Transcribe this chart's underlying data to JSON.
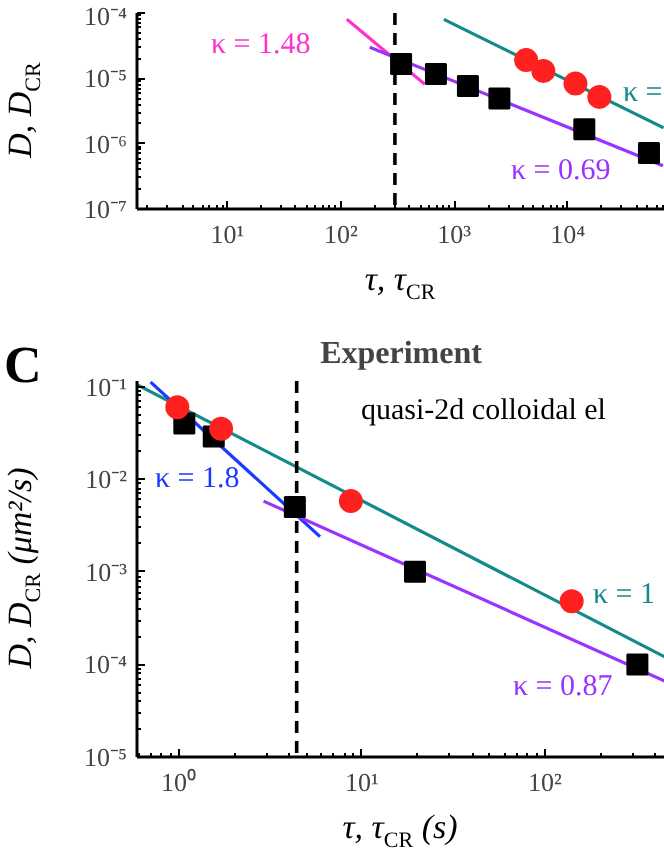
{
  "chart_data": [
    {
      "type": "scatter",
      "log": "xy",
      "xlabel": "τ, τ$_{CR}$",
      "ylabel": "D, D$_{CR}$",
      "xlim": [
        1.6,
        72000
      ],
      "ylim": [
        1e-07,
        0.0001
      ],
      "xticks": [
        {
          "value": 10,
          "label": "10¹"
        },
        {
          "value": 100,
          "label": "10²"
        },
        {
          "value": 1000,
          "label": "10³"
        },
        {
          "value": 10000,
          "label": "10⁴"
        }
      ],
      "yticks": [
        {
          "value": 1e-07,
          "label": "10⁻⁷"
        },
        {
          "value": 1e-06,
          "label": "10⁻⁶"
        },
        {
          "value": 1e-05,
          "label": "10⁻⁵"
        },
        {
          "value": 0.0001,
          "label": "10⁻⁴"
        }
      ],
      "grid": false,
      "series": [
        {
          "type": "line",
          "color": "#ff33cc",
          "x": [
            113,
            550
          ],
          "values": [
            8e-05,
            8.1e-06
          ]
        },
        {
          "type": "line",
          "color": "#9933ff",
          "x": [
            180,
            69000
          ],
          "values": [
            3e-05,
            4.6e-07
          ]
        },
        {
          "type": "line",
          "color": "#138a8a",
          "x": [
            810,
            70000
          ],
          "values": [
            8e-05,
            1.75e-06
          ]
        },
        {
          "marker": "square",
          "color": "#000000",
          "x": [
            340,
            690,
            1320,
            2500,
            14000,
            52000
          ],
          "values": [
            1.66e-05,
            1.17e-05,
            7.6e-06,
            4.9e-06,
            1.66e-06,
            7.2e-07
          ]
        },
        {
          "marker": "circle",
          "color": "#ff2020",
          "x": [
            4300,
            6100,
            11700,
            19000
          ],
          "values": [
            1.9e-05,
            1.3e-05,
            8.3e-06,
            5.2e-06
          ]
        }
      ],
      "ref_lines": [
        {
          "axis": "x",
          "value": 300,
          "color": "#000000",
          "line_style": "dashed"
        }
      ],
      "annotations": [
        "κ = 1.48",
        "κ = 0.69",
        "κ ="
      ]
    },
    {
      "type": "scatter",
      "log": "xy",
      "title": "Experiment",
      "xlabel": "τ, τ$_{CR}$ (s)",
      "ylabel": "D, D$_{CR}$ (μm²/s)",
      "xlim": [
        0.59,
        453
      ],
      "ylim": [
        1e-05,
        0.115
      ],
      "xticks": [
        {
          "value": 1,
          "label": "10⁰"
        },
        {
          "value": 10,
          "label": "10¹"
        },
        {
          "value": 100,
          "label": "10²"
        }
      ],
      "yticks": [
        {
          "value": 1e-05,
          "label": "10⁻⁵"
        },
        {
          "value": 0.0001,
          "label": "10⁻⁴"
        },
        {
          "value": 0.001,
          "label": "10⁻³"
        },
        {
          "value": 0.01,
          "label": "10⁻²"
        },
        {
          "value": 0.1,
          "label": "10⁻¹"
        }
      ],
      "grid": false,
      "series": [
        {
          "type": "line",
          "color": "#138a8a",
          "x": [
            0.59,
            453
          ],
          "values": [
            0.105,
            0.00012
          ]
        },
        {
          "type": "line",
          "color": "#1a3aff",
          "x": [
            0.7,
            5.9
          ],
          "values": [
            0.112,
            0.0024
          ]
        },
        {
          "type": "line",
          "color": "#9933ff",
          "x": [
            2.9,
            453
          ],
          "values": [
            0.0058,
            6.6e-05
          ]
        },
        {
          "marker": "square",
          "color": "#000000",
          "x": [
            1.07,
            1.55,
            4.3,
            19.5,
            320
          ],
          "values": [
            0.04,
            0.029,
            0.005,
            0.001,
            0.0001
          ]
        },
        {
          "marker": "circle",
          "color": "#ff2020",
          "x": [
            0.98,
            1.7,
            8.7,
            140
          ],
          "values": [
            0.06,
            0.035,
            0.0058,
            0.00048
          ]
        }
      ],
      "ref_lines": [
        {
          "axis": "x",
          "value": 4.4,
          "color": "#000000",
          "line_style": "dashed"
        }
      ],
      "annotations": [
        "C",
        "quasi-2d colloidal el",
        "κ = 1.8",
        "κ = 1",
        "κ = 0.87"
      ]
    }
  ]
}
